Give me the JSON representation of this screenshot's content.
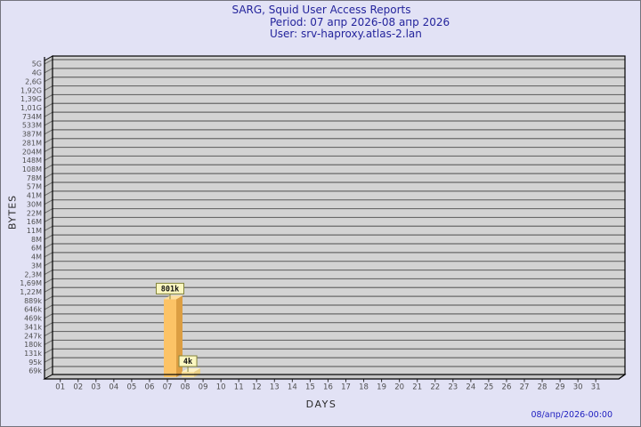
{
  "title": {
    "line1": "SARG, Squid User Access Reports",
    "line2": "Period: 07 апр 2026-08 апр 2026",
    "line3": "User: srv-haproxy.atlas-2.lan"
  },
  "footer": {
    "timestamp": "08/апр/2026-00:00"
  },
  "palette": {
    "page_bg": "#e2e2f5",
    "page_border": "#74747e",
    "plot_bg": "#d3d3d3",
    "wall_bg": "#c6c6c6",
    "grid_line": "#696969",
    "outline": "#000000",
    "title_text": "#24249c",
    "timestamp_text": "#2020c0",
    "tick_text": "#4f4f4f",
    "axis_title_text": "#2a2a2a",
    "tag_bg": "#fbf7c0",
    "tag_border": "#84843c",
    "tag_text": "#111111"
  },
  "chart_data": {
    "type": "bar",
    "title": "SARG, Squid User Access Reports",
    "xlabel": "DAYS",
    "ylabel": "BYTES",
    "x_ticks": [
      "01",
      "02",
      "03",
      "04",
      "05",
      "06",
      "07",
      "08",
      "09",
      "10",
      "11",
      "12",
      "13",
      "14",
      "15",
      "16",
      "17",
      "18",
      "19",
      "20",
      "21",
      "22",
      "23",
      "24",
      "25",
      "26",
      "27",
      "28",
      "29",
      "30",
      "31"
    ],
    "y_scale": "log",
    "y_ticks": [
      {
        "label": "5G",
        "value": 5000000000
      },
      {
        "label": "4G",
        "value": 4000000000
      },
      {
        "label": "2,6G",
        "value": 2600000000
      },
      {
        "label": "1,92G",
        "value": 1920000000
      },
      {
        "label": "1,39G",
        "value": 1390000000
      },
      {
        "label": "1,01G",
        "value": 1010000000
      },
      {
        "label": "734M",
        "value": 734000000
      },
      {
        "label": "533M",
        "value": 533000000
      },
      {
        "label": "387M",
        "value": 387000000
      },
      {
        "label": "281M",
        "value": 281000000
      },
      {
        "label": "204M",
        "value": 204000000
      },
      {
        "label": "148M",
        "value": 148000000
      },
      {
        "label": "108M",
        "value": 108000000
      },
      {
        "label": "78M",
        "value": 78000000
      },
      {
        "label": "57M",
        "value": 57000000
      },
      {
        "label": "41M",
        "value": 41000000
      },
      {
        "label": "30M",
        "value": 30000000
      },
      {
        "label": "22M",
        "value": 22000000
      },
      {
        "label": "16M",
        "value": 16000000
      },
      {
        "label": "11M",
        "value": 11000000
      },
      {
        "label": "8M",
        "value": 8000000
      },
      {
        "label": "6M",
        "value": 6000000
      },
      {
        "label": "4M",
        "value": 4000000
      },
      {
        "label": "3M",
        "value": 3000000
      },
      {
        "label": "2,3M",
        "value": 2300000
      },
      {
        "label": "1,69M",
        "value": 1690000
      },
      {
        "label": "1,22M",
        "value": 1220000
      },
      {
        "label": "889k",
        "value": 889000
      },
      {
        "label": "646k",
        "value": 646000
      },
      {
        "label": "469k",
        "value": 469000
      },
      {
        "label": "341k",
        "value": 341000
      },
      {
        "label": "247k",
        "value": 247000
      },
      {
        "label": "180k",
        "value": 180000
      },
      {
        "label": "131k",
        "value": 131000
      },
      {
        "label": "95k",
        "value": 95000
      },
      {
        "label": "69k",
        "value": 69000
      }
    ],
    "bars": [
      {
        "day": "07",
        "value_bytes": 801000,
        "label": "801k",
        "colors": {
          "front": "#fcc366",
          "side": "#dc9e42",
          "top": "#fedf9c"
        }
      },
      {
        "day": "08",
        "value_bytes": 4000,
        "label": "4k",
        "colors": {
          "front": "#f8e09a",
          "side": "#ead087",
          "top": "#fcf0c4"
        }
      }
    ]
  }
}
